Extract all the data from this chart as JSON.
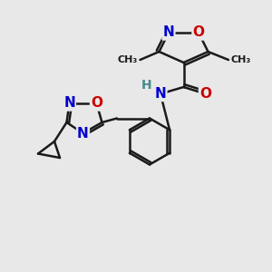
{
  "bg_color": "#e8e8e8",
  "bond_color": "#1a1a1a",
  "bond_width": 1.8,
  "atom_colors": {
    "N": "#0000cc",
    "O": "#cc0000",
    "C": "#1a1a1a",
    "H": "#4a8a8a"
  },
  "font_size": 10,
  "figsize": [
    3.0,
    3.0
  ],
  "dpi": 100
}
